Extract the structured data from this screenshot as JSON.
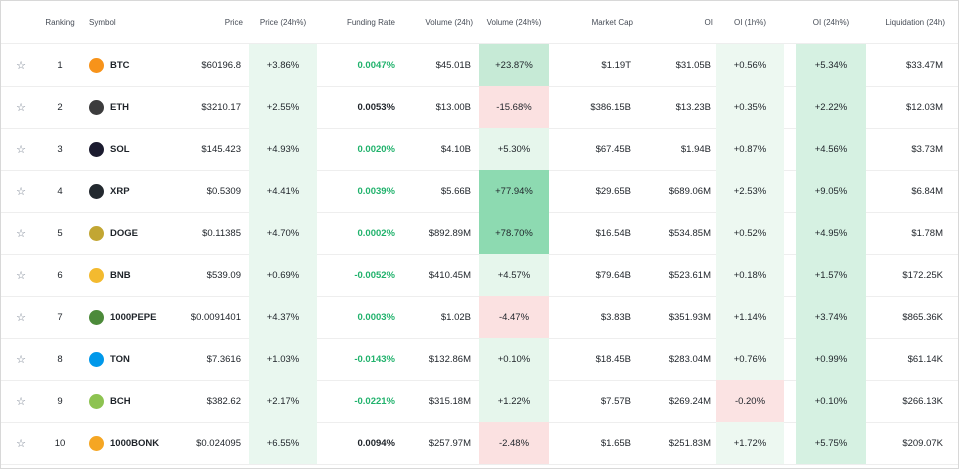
{
  "table": {
    "header": [
      "Ranking",
      "Symbol",
      "Price",
      "Price (24h%)",
      "Funding Rate",
      "Volume (24h)",
      "Volume (24h%)",
      "Market Cap",
      "OI",
      "OI (1h%)",
      "OI (24h%)",
      "Liquidation (24h)"
    ],
    "rows": [
      {
        "cells": [
          "1",
          "BTC",
          "$60196.8",
          "+3.86%",
          "0.0047%",
          "$45.01B",
          "+23.87%",
          "$1.19T",
          "$31.05B",
          "+0.56%",
          "+5.34%",
          "$33.47M"
        ],
        "icon_color": "#f7931a",
        "funding_color": "#20b26c",
        "volume_pct_bg": "#c6ead6",
        "oi_1h_bg": "#edf8f1"
      },
      {
        "cells": [
          "2",
          "ETH",
          "$3210.17",
          "+2.55%",
          "0.0053%",
          "$13.00B",
          "-15.68%",
          "$386.15B",
          "$13.23B",
          "+0.35%",
          "+2.22%",
          "$12.03M"
        ],
        "icon_color": "#3c3c3d",
        "funding_color": "#1e2329",
        "volume_pct_bg": "#fbe1e1",
        "oi_1h_bg": "#edf8f1"
      },
      {
        "cells": [
          "3",
          "SOL",
          "$145.423",
          "+4.93%",
          "0.0020%",
          "$4.10B",
          "+5.30%",
          "$67.45B",
          "$1.94B",
          "+0.87%",
          "+4.56%",
          "$3.73M"
        ],
        "icon_color": "#1b1b2f",
        "funding_color": "#20b26c",
        "volume_pct_bg": "#e6f6ec",
        "oi_1h_bg": "#edf8f1"
      },
      {
        "cells": [
          "4",
          "XRP",
          "$0.5309",
          "+4.41%",
          "0.0039%",
          "$5.66B",
          "+77.94%",
          "$29.65B",
          "$689.06M",
          "+2.53%",
          "+9.05%",
          "$6.84M"
        ],
        "icon_color": "#23292f",
        "funding_color": "#20b26c",
        "volume_pct_bg": "#8ddab1",
        "oi_1h_bg": "#edf8f1"
      },
      {
        "cells": [
          "5",
          "DOGE",
          "$0.11385",
          "+4.70%",
          "0.0002%",
          "$892.89M",
          "+78.70%",
          "$16.54B",
          "$534.85M",
          "+0.52%",
          "+4.95%",
          "$1.78M"
        ],
        "icon_color": "#c2a633",
        "funding_color": "#20b26c",
        "volume_pct_bg": "#8ddab1",
        "oi_1h_bg": "#edf8f1"
      },
      {
        "cells": [
          "6",
          "BNB",
          "$539.09",
          "+0.69%",
          "-0.0052%",
          "$410.45M",
          "+4.57%",
          "$79.64B",
          "$523.61M",
          "+0.18%",
          "+1.57%",
          "$172.25K"
        ],
        "icon_color": "#f3ba2f",
        "funding_color": "#20b26c",
        "volume_pct_bg": "#e6f6ec",
        "oi_1h_bg": "#edf8f1"
      },
      {
        "cells": [
          "7",
          "1000PEPE",
          "$0.0091401",
          "+4.37%",
          "0.0003%",
          "$1.02B",
          "-4.47%",
          "$3.83B",
          "$351.93M",
          "+1.14%",
          "+3.74%",
          "$865.36K"
        ],
        "icon_color": "#4c8a3a",
        "funding_color": "#20b26c",
        "volume_pct_bg": "#fbe1e1",
        "oi_1h_bg": "#edf8f1"
      },
      {
        "cells": [
          "8",
          "TON",
          "$7.3616",
          "+1.03%",
          "-0.0143%",
          "$132.86M",
          "+0.10%",
          "$18.45B",
          "$283.04M",
          "+0.76%",
          "+0.99%",
          "$61.14K"
        ],
        "icon_color": "#0098ea",
        "funding_color": "#20b26c",
        "volume_pct_bg": "#e6f6ec",
        "oi_1h_bg": "#edf8f1"
      },
      {
        "cells": [
          "9",
          "BCH",
          "$382.62",
          "+2.17%",
          "-0.0221%",
          "$315.18M",
          "+1.22%",
          "$7.57B",
          "$269.24M",
          "-0.20%",
          "+0.10%",
          "$266.13K"
        ],
        "icon_color": "#8dc351",
        "funding_color": "#20b26c",
        "volume_pct_bg": "#e6f6ec",
        "oi_1h_bg": "#fbe3e3"
      },
      {
        "cells": [
          "10",
          "1000BONK",
          "$0.024095",
          "+6.55%",
          "0.0094%",
          "$257.97M",
          "-2.48%",
          "$1.65B",
          "$251.83M",
          "+1.72%",
          "+5.75%",
          "$209.07K"
        ],
        "icon_color": "#f5a623",
        "funding_color": "#1e2329",
        "volume_pct_bg": "#fbe1e1",
        "oi_1h_bg": "#edf8f1"
      }
    ]
  }
}
